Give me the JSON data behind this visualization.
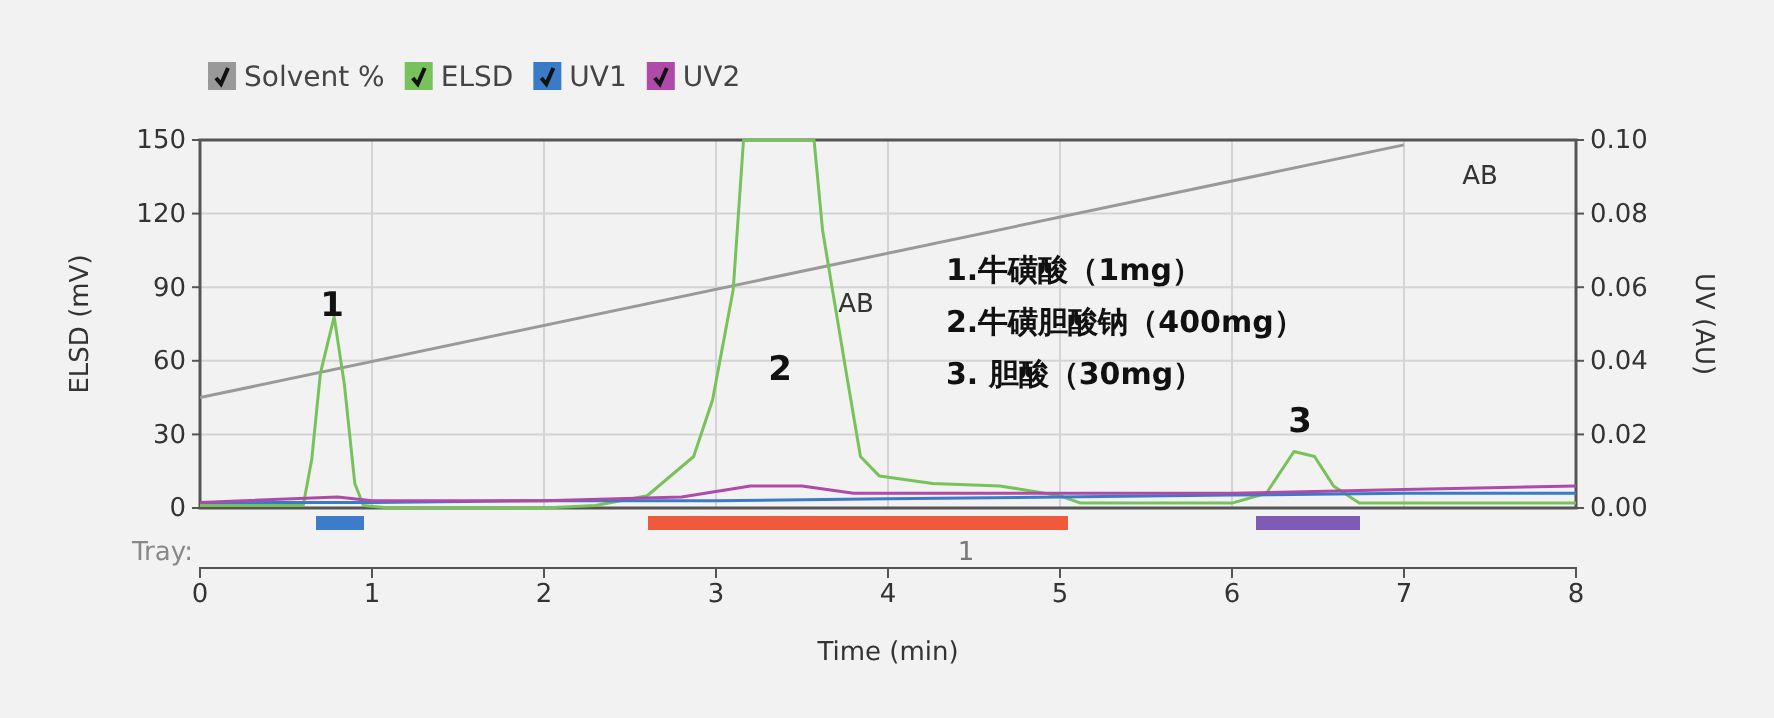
{
  "chart_data": {
    "type": "line",
    "xlabel": "Time (min)",
    "ylabel": "ELSD (mV)",
    "y2label": "UV (AU)",
    "xlim": [
      0,
      8
    ],
    "xticks": [
      0,
      1,
      2,
      3,
      4,
      5,
      6,
      7,
      8
    ],
    "ylim": [
      0,
      150
    ],
    "yticks": [
      0,
      30,
      60,
      90,
      120,
      150
    ],
    "y2lim": [
      0,
      0.1
    ],
    "y2ticks": [
      {
        "value": 0,
        "label": "0.00"
      },
      {
        "value": 0.02,
        "label": "0.02"
      },
      {
        "value": 0.04,
        "label": "0.04"
      },
      {
        "value": 0.06,
        "label": "0.06"
      },
      {
        "value": 0.08,
        "label": "0.08"
      },
      {
        "value": 0.1,
        "label": "0.10"
      }
    ],
    "grid": true,
    "legend": "top left",
    "marker": "none",
    "line_style": "solid",
    "series": [
      {
        "name": "Solvent %",
        "color": "#999999",
        "x": [
          0,
          7
        ],
        "values": [
          45,
          148
        ]
      },
      {
        "name": "ELSD",
        "color": "#77c25a",
        "x": [
          0,
          0.6,
          0.65,
          0.7,
          0.78,
          0.84,
          0.9,
          0.95,
          1.1,
          2.0,
          2.3,
          2.6,
          2.87,
          2.98,
          3.1,
          3.16,
          3.57,
          3.62,
          3.76,
          3.84,
          3.95,
          4.26,
          4.65,
          5.0,
          5.12,
          6.0,
          6.2,
          6.36,
          6.48,
          6.59,
          6.74,
          8.0
        ],
        "values": [
          1,
          1,
          20,
          55,
          78,
          50,
          10,
          1,
          0,
          0,
          1,
          5,
          21,
          44,
          89,
          150,
          150,
          113,
          54,
          21,
          13,
          10,
          9,
          5,
          2,
          2,
          6,
          23,
          21,
          9,
          2,
          2
        ]
      },
      {
        "name": "UV1",
        "color": "#3a7bc8",
        "axis": "y2",
        "x": [
          0,
          1,
          2,
          3,
          4,
          5,
          6,
          7,
          8
        ],
        "values": [
          0.0015,
          0.0015,
          0.002,
          0.002,
          0.0025,
          0.003,
          0.0035,
          0.004,
          0.004
        ]
      },
      {
        "name": "UV2",
        "color": "#b04aa8",
        "axis": "y2",
        "x": [
          0,
          0.8,
          1.0,
          2.0,
          2.8,
          3.2,
          3.5,
          3.8,
          4.2,
          5,
          6,
          7,
          8
        ],
        "values": [
          0.0015,
          0.003,
          0.002,
          0.002,
          0.003,
          0.006,
          0.006,
          0.004,
          0.004,
          0.004,
          0.004,
          0.005,
          0.006
        ]
      }
    ],
    "annotations": [
      "1.牛磺酸（1mg）",
      "2.牛磺胆酸钠（400mg）",
      "3. 胆酸（30mg）",
      "Tray:",
      "1",
      "1",
      "2",
      "3",
      "AB",
      "AB"
    ]
  }
}
